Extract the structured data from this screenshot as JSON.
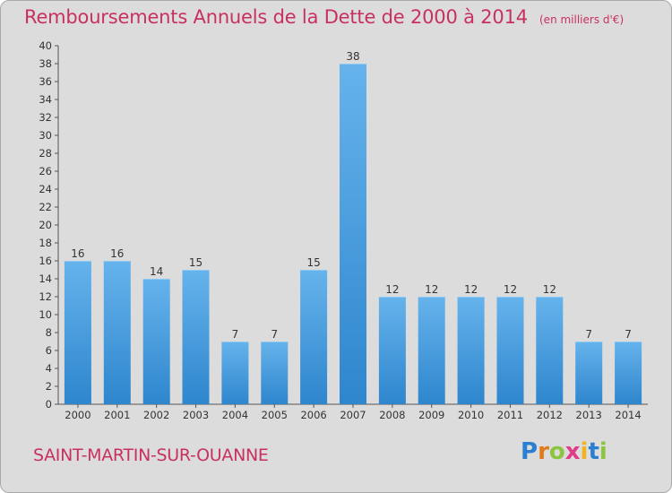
{
  "header": {
    "title": "Remboursements Annuels de la Dette de 2000 à 2014",
    "unit": "(en milliers d'€)"
  },
  "footer": {
    "commune": "SAINT-MARTIN-SUR-OUANNE",
    "logo_text": "Proxiti"
  },
  "colors": {
    "title": "#c8315f",
    "bar_light": "#66b3ec",
    "bar_dark": "#2e86cd",
    "background": "#dcdcdc"
  },
  "chart_data": {
    "type": "bar",
    "title": "Remboursements Annuels de la Dette de 2000 à 2014",
    "categories": [
      "2000",
      "2001",
      "2002",
      "2003",
      "2004",
      "2005",
      "2006",
      "2007",
      "2008",
      "2009",
      "2010",
      "2011",
      "2012",
      "2013",
      "2014"
    ],
    "values": [
      16,
      16,
      14,
      15,
      7,
      7,
      15,
      38,
      12,
      12,
      12,
      12,
      12,
      7,
      7
    ],
    "ylim": [
      0,
      40
    ],
    "ytick_step": 2,
    "xlabel": "",
    "ylabel": "",
    "grid": false,
    "legend": "none"
  }
}
